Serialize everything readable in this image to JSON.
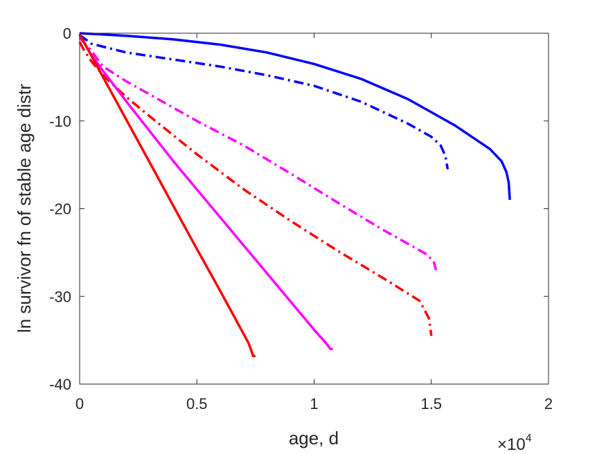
{
  "chart_data": {
    "type": "line",
    "xlabel": "age, d",
    "ylabel": "ln survivor fn of stable age distr",
    "x_exponent_label": {
      "base": "×10",
      "exp": "4"
    },
    "xlim": [
      0,
      20000
    ],
    "ylim": [
      -40,
      0
    ],
    "x_ticks": [
      0,
      5000,
      10000,
      15000,
      20000
    ],
    "x_tick_labels": [
      "0",
      "0.5",
      "1",
      "1.5",
      "2"
    ],
    "y_ticks": [
      0,
      -10,
      -20,
      -30,
      -40
    ],
    "y_tick_labels": [
      "0",
      "-10",
      "-20",
      "-30",
      "-40"
    ],
    "grid": false,
    "series": [
      {
        "color": "#0000ff",
        "style": "solid",
        "x": [
          0,
          2000,
          4000,
          6000,
          8000,
          10000,
          12000,
          14000,
          16000,
          17500,
          18000,
          18200,
          18300,
          18350
        ],
        "y": [
          0,
          -0.3,
          -0.7,
          -1.3,
          -2.2,
          -3.5,
          -5.2,
          -7.5,
          -10.5,
          -13.2,
          -14.6,
          -15.8,
          -17.0,
          -19.0
        ]
      },
      {
        "color": "#0000ff",
        "style": "dashdot",
        "x": [
          0,
          500,
          2000,
          4000,
          6000,
          8000,
          10000,
          12000,
          14000,
          15000,
          15400,
          15600,
          15700
        ],
        "y": [
          -0.2,
          -1.2,
          -2.2,
          -3.0,
          -3.8,
          -4.8,
          -6.0,
          -7.8,
          -10.3,
          -11.8,
          -12.8,
          -14.0,
          -15.5
        ]
      },
      {
        "color": "#ff00ff",
        "style": "dashdot",
        "x": [
          0,
          500,
          1000,
          2000,
          3000,
          5000,
          7000,
          9000,
          11000,
          13000,
          14000,
          14800,
          15100,
          15200
        ],
        "y": [
          -0.5,
          -2.0,
          -3.8,
          -5.5,
          -7.0,
          -10.0,
          -12.8,
          -16.0,
          -19.3,
          -22.5,
          -24.0,
          -25.2,
          -26.0,
          -27.0
        ]
      },
      {
        "color": "#ff0000",
        "style": "dashdot",
        "x": [
          0,
          200,
          500,
          1000,
          2000,
          3000,
          5000,
          7000,
          9000,
          11000,
          13000,
          14500,
          14900,
          15000
        ],
        "y": [
          -1.0,
          -2.0,
          -3.2,
          -4.8,
          -7.3,
          -9.5,
          -13.8,
          -17.8,
          -21.4,
          -24.8,
          -28.0,
          -30.5,
          -32.5,
          -34.5
        ]
      },
      {
        "color": "#ff00ff",
        "style": "solid",
        "x": [
          0,
          500,
          1000,
          2000,
          4000,
          6000,
          8000,
          10000,
          10500,
          10700,
          10800
        ],
        "y": [
          -0.2,
          -2.5,
          -4.3,
          -7.8,
          -14.6,
          -21.0,
          -27.4,
          -33.8,
          -35.3,
          -36.0,
          -36.0
        ]
      },
      {
        "color": "#ff0000",
        "style": "solid",
        "x": [
          0,
          1000,
          2000,
          3000,
          4000,
          5000,
          6000,
          7000,
          7200,
          7300,
          7400,
          7500
        ],
        "y": [
          -0.1,
          -5.0,
          -9.9,
          -14.8,
          -19.7,
          -24.6,
          -29.4,
          -34.3,
          -35.3,
          -36.0,
          -36.8,
          -36.8
        ]
      }
    ]
  }
}
